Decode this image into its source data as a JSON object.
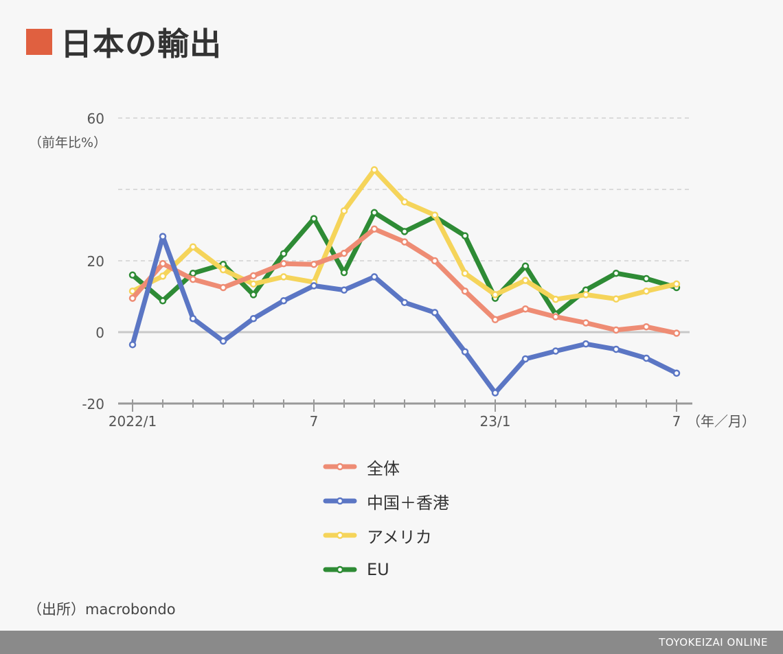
{
  "header": {
    "title": "日本の輸出"
  },
  "chart_data": {
    "type": "line",
    "title": "日本の輸出",
    "ylabel": "（前年比%）",
    "xlabel_unit": "（年／月）",
    "ylim": [
      -20,
      60
    ],
    "yticks": [
      {
        "value": 60,
        "label": "60"
      },
      {
        "value": 40,
        "label": ""
      },
      {
        "value": 20,
        "label": "20"
      },
      {
        "value": 0,
        "label": "0"
      },
      {
        "value": -20,
        "label": "-20"
      }
    ],
    "x_tick_labels": [
      {
        "index": 0,
        "label": "2022/1"
      },
      {
        "index": 6,
        "label": "7"
      },
      {
        "index": 12,
        "label": "23/1"
      },
      {
        "index": 18,
        "label": "7"
      }
    ],
    "months": [
      "2022/1",
      "2022/2",
      "2022/3",
      "2022/4",
      "2022/5",
      "2022/6",
      "2022/7",
      "2022/8",
      "2022/9",
      "2022/10",
      "2022/11",
      "2022/12",
      "2023/1",
      "2023/2",
      "2023/3",
      "2023/4",
      "2023/5",
      "2023/6",
      "2023/7"
    ],
    "series": [
      {
        "name": "EU",
        "color": "#2e8b35",
        "values": [
          16,
          8.8,
          16.5,
          19,
          10.5,
          22,
          31.8,
          16.7,
          33.5,
          28.2,
          32.3,
          27,
          9.5,
          18.5,
          5,
          11.8,
          16.5,
          15,
          12.5
        ]
      },
      {
        "name": "アメリカ",
        "color": "#f5d45a",
        "values": [
          11.5,
          15.7,
          23.9,
          17.5,
          13.5,
          15.5,
          14,
          34,
          45.5,
          36.5,
          32.8,
          16.5,
          10.5,
          14.5,
          9.2,
          10.5,
          9.3,
          11.5,
          13.5
        ]
      },
      {
        "name": "全体",
        "color": "#ee8c74",
        "values": [
          9.5,
          19.2,
          14.8,
          12.5,
          15.8,
          19.2,
          19,
          22.1,
          28.9,
          25.3,
          20,
          11.5,
          3.5,
          6.5,
          4.3,
          2.6,
          0.6,
          1.5,
          -0.3
        ]
      },
      {
        "name": "中国＋香港",
        "color": "#5b76c4",
        "values": [
          -3.5,
          26.8,
          3.8,
          -2.5,
          3.8,
          8.8,
          13,
          11.8,
          15.5,
          8.3,
          5.5,
          -5.5,
          -17,
          -7.5,
          -5.3,
          -3.3,
          -4.8,
          -7.3,
          -11.5
        ]
      }
    ]
  },
  "legend": {
    "items": [
      {
        "label": "全体",
        "color": "#ee8c74"
      },
      {
        "label": "中国＋香港",
        "color": "#5b76c4"
      },
      {
        "label": "アメリカ",
        "color": "#f5d45a"
      },
      {
        "label": "EU",
        "color": "#2e8b35"
      }
    ]
  },
  "source": "（出所）macrobondo",
  "footer": {
    "brand": "TOYOKEIZAI ONLINE"
  }
}
